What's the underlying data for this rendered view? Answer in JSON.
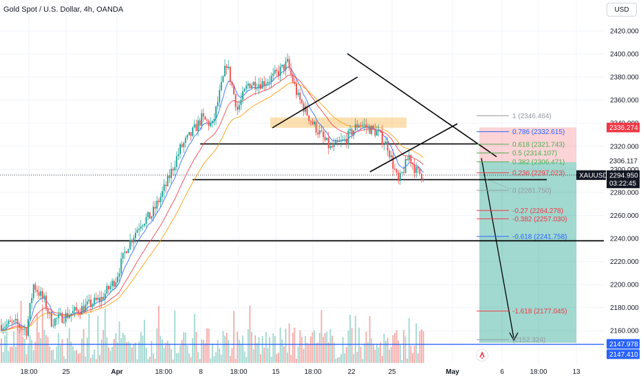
{
  "header": {
    "title": "Gold Spot / U.S. Dollar, 4h, OANDA",
    "currency": "USD"
  },
  "chart_data": {
    "type": "candlestick",
    "symbol": "XAUUSD",
    "y_range": [
      2138,
      2430
    ],
    "y_ticks": [
      2160,
      2180,
      2200,
      2220,
      2240,
      2260,
      2280,
      2300,
      2320,
      2340,
      2360,
      2380,
      2400,
      2420
    ],
    "x_ticks": [
      "18:00",
      "25",
      "Apr",
      "18:00",
      "8",
      "18:00",
      "15",
      "18:00",
      "22",
      "25",
      "May",
      "6",
      "18:00",
      "13"
    ],
    "n_bars": 260,
    "price_path_anchors": [
      [
        0,
        2165
      ],
      [
        8,
        2166
      ],
      [
        14,
        2160
      ],
      [
        18,
        2200
      ],
      [
        24,
        2186
      ],
      [
        28,
        2168
      ],
      [
        36,
        2173
      ],
      [
        46,
        2180
      ],
      [
        56,
        2188
      ],
      [
        64,
        2205
      ],
      [
        70,
        2232
      ],
      [
        78,
        2254
      ],
      [
        84,
        2260
      ],
      [
        92,
        2286
      ],
      [
        100,
        2318
      ],
      [
        106,
        2330
      ],
      [
        112,
        2344
      ],
      [
        118,
        2338
      ],
      [
        126,
        2392
      ],
      [
        132,
        2352
      ],
      [
        138,
        2374
      ],
      [
        146,
        2375
      ],
      [
        152,
        2380
      ],
      [
        160,
        2392
      ],
      [
        166,
        2362
      ],
      [
        174,
        2340
      ],
      [
        184,
        2318
      ],
      [
        192,
        2325
      ],
      [
        200,
        2340
      ],
      [
        210,
        2332
      ],
      [
        216,
        2320
      ],
      [
        222,
        2288
      ],
      [
        228,
        2312
      ],
      [
        232,
        2298
      ],
      [
        236,
        2295
      ]
    ],
    "current_price": {
      "symbol": "XAUUSD",
      "value": 2294.95,
      "countdown": "03:22:45"
    },
    "price_tags": [
      {
        "value": 2336.274,
        "label": "2336.274",
        "color": "#f23645"
      },
      {
        "value": 2306.117,
        "label": "2306.117",
        "color": "#ffffff"
      },
      {
        "value": 2147.978,
        "label": "2147.978",
        "color": "#2962ff"
      },
      {
        "value": 2147.41,
        "label": "2147.410",
        "color": "#2962ff"
      }
    ],
    "fib_levels": [
      {
        "ratio": "1",
        "value": 2346.464,
        "label": "1 (2346.464)",
        "color": "#9598a1"
      },
      {
        "ratio": "0.786",
        "value": 2332.615,
        "label": "0.786 (2332.615)",
        "color": "#2962ff"
      },
      {
        "ratio": "0.618",
        "value": 2321.743,
        "label": "0.618 (2321.743)",
        "color": "#4caf50"
      },
      {
        "ratio": "0.5",
        "value": 2314.107,
        "label": "0.5 (2314.107)",
        "color": "#4caf50"
      },
      {
        "ratio": "0.382",
        "value": 2306.471,
        "label": "0.382 (2306.471)",
        "color": "#4caf50"
      },
      {
        "ratio": "0.236",
        "value": 2297.023,
        "label": "0.236 (2297.023)",
        "color": "#f23645"
      },
      {
        "ratio": "0",
        "value": 2281.75,
        "label": "0 (2281.750)",
        "color": "#9598a1"
      },
      {
        "ratio": "-0.27",
        "value": 2264.278,
        "label": "-0.27 (2264.278)",
        "color": "#f23645"
      },
      {
        "ratio": "-0.382",
        "value": 2257.03,
        "label": "-0.382 (2257.030)",
        "color": "#f23645"
      },
      {
        "ratio": "-0.618",
        "value": 2241.758,
        "label": "-0.618 (2241.758)",
        "color": "#2962ff"
      },
      {
        "ratio": "-1.618",
        "value": 2177.045,
        "label": "-1.618 (2177.045)",
        "color": "#f23645"
      },
      {
        "ratio": "",
        "value": 2152.324,
        "label": "(2152.324)",
        "color": "#9598a1"
      }
    ],
    "horizontal_levels": [
      2322,
      2291,
      2238
    ],
    "zone_top": 2336.274,
    "zone_entry": 2306.117,
    "zone_bottom": 2149.5,
    "supply_zone": [
      2336,
      2345
    ],
    "colors": {
      "up": "#26a69a",
      "down": "#ef5350",
      "ema_fast": "#2962ff",
      "ema_mid": "#f23645",
      "ema_slow": "#ff9800",
      "grid": "#f0f3fa"
    }
  }
}
